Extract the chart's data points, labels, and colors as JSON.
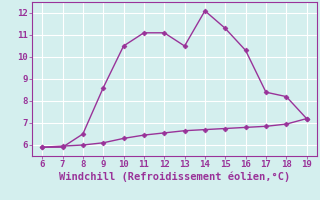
{
  "xlabel": "Windchill (Refroidissement éolien,°C)",
  "ylabel": "",
  "background_color": "#d4efee",
  "line_color": "#993399",
  "grid_color": "#ffffff",
  "xlim": [
    5.5,
    19.5
  ],
  "ylim": [
    5.5,
    12.5
  ],
  "xticks": [
    6,
    7,
    8,
    9,
    10,
    11,
    12,
    13,
    14,
    15,
    16,
    17,
    18,
    19
  ],
  "yticks": [
    6,
    7,
    8,
    9,
    10,
    11,
    12
  ],
  "line1_x": [
    6,
    7,
    8,
    9,
    10,
    11,
    12,
    13,
    14,
    15,
    16,
    17,
    18,
    19
  ],
  "line1_y": [
    5.9,
    5.9,
    6.5,
    8.6,
    10.5,
    11.1,
    11.1,
    10.5,
    12.1,
    11.3,
    10.3,
    8.4,
    8.2,
    7.2
  ],
  "line2_x": [
    6,
    7,
    8,
    9,
    10,
    11,
    12,
    13,
    14,
    15,
    16,
    17,
    18,
    19
  ],
  "line2_y": [
    5.9,
    5.95,
    6.0,
    6.1,
    6.3,
    6.45,
    6.55,
    6.65,
    6.7,
    6.75,
    6.8,
    6.85,
    6.95,
    7.2
  ],
  "markersize": 2.5,
  "linewidth": 1.0,
  "tick_fontsize": 6.5,
  "xlabel_fontsize": 7.5
}
